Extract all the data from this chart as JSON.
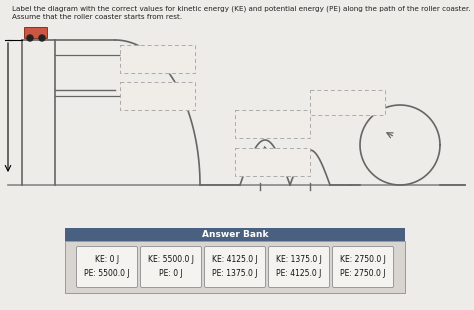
{
  "title_line1": "Label the diagram with the correct values for kinetic energy (KE) and potential energy (PE) along the path of the roller coaster.",
  "title_line2": "Assume that the roller coaster starts from rest.",
  "bg_color": "#eeece8",
  "answer_bank_header": "Answer Bank",
  "answer_bank_header_bg": "#4a6080",
  "answer_bank_header_color": "#ffffff",
  "answer_cards": [
    {
      "ke": "KE: 0 J",
      "pe": "PE: 5500.0 J"
    },
    {
      "ke": "KE: 5500.0 J",
      "pe": "PE: 0 J"
    },
    {
      "ke": "KE: 4125.0 J",
      "pe": "PE: 1375.0 J"
    },
    {
      "ke": "KE: 1375.0 J",
      "pe": "PE: 4125.0 J"
    },
    {
      "ke": "KE: 2750.0 J",
      "pe": "PE: 2750.0 J"
    }
  ],
  "track_color": "#666666",
  "ground_color": "#888888",
  "roller_car_color": "#cc5544",
  "dashed_box_color": "#aaaaaa",
  "answer_bank_bg": "#d8d5d0",
  "card_bg": "#f5f3f0"
}
